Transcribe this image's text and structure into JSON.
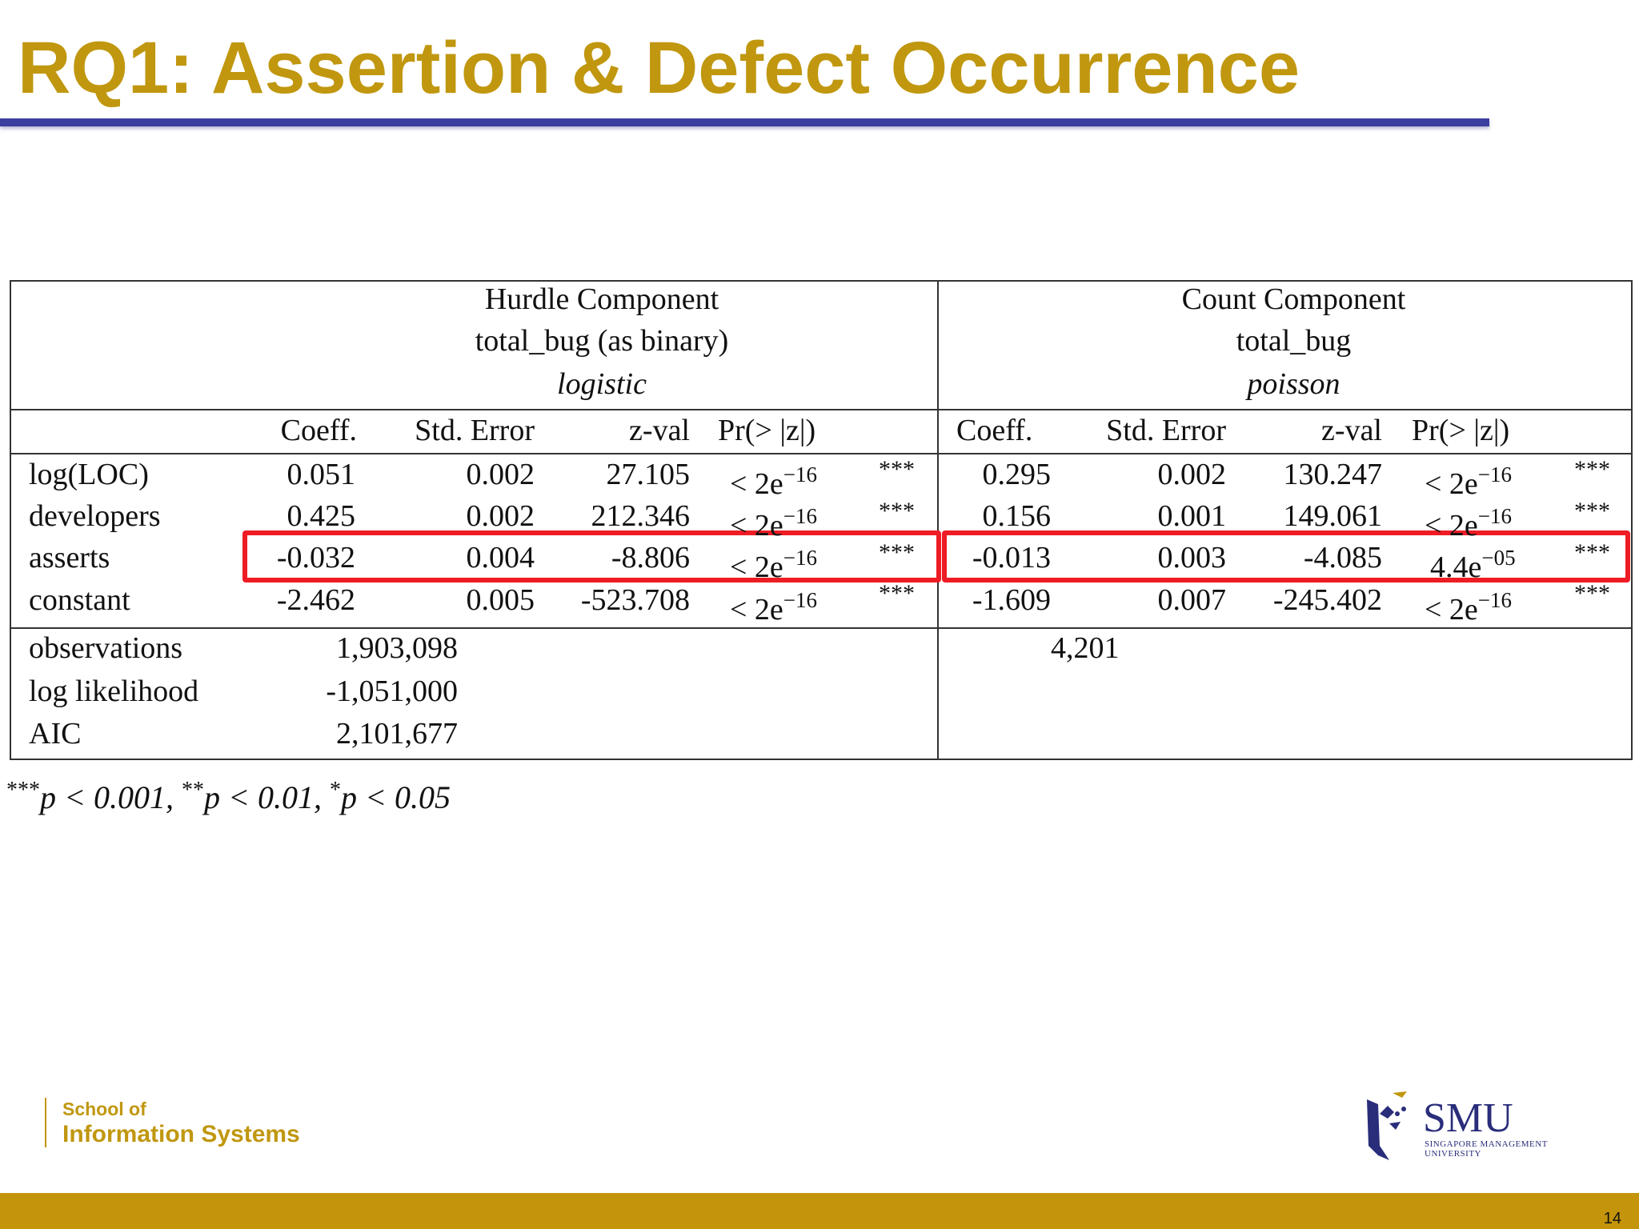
{
  "slide": {
    "title": "RQ1: Assertion & Defect Occurrence",
    "page_number": "14"
  },
  "table": {
    "hurdle": {
      "line1": "Hurdle Component",
      "line2": "total_bug (as binary)",
      "line3": "logistic"
    },
    "count": {
      "line1": "Count Component",
      "line2": "total_bug",
      "line3": "poisson"
    },
    "columns": {
      "coeff": "Coeff.",
      "std_error": "Std. Error",
      "zval": "z-val",
      "pr": "Pr(> |z|)"
    },
    "rows": [
      {
        "name": "log(LOC)",
        "hurdle": {
          "coeff": "0.051",
          "std_error": "0.002",
          "zval": "27.105",
          "pr_base": "< 2e",
          "pr_exp": "−16",
          "sig": "***"
        },
        "count": {
          "coeff": "0.295",
          "std_error": "0.002",
          "zval": "130.247",
          "pr_base": "< 2e",
          "pr_exp": "−16",
          "sig": "***"
        }
      },
      {
        "name": "developers",
        "hurdle": {
          "coeff": "0.425",
          "std_error": "0.002",
          "zval": "212.346",
          "pr_base": "< 2e",
          "pr_exp": "−16",
          "sig": "***"
        },
        "count": {
          "coeff": "0.156",
          "std_error": "0.001",
          "zval": "149.061",
          "pr_base": "< 2e",
          "pr_exp": "−16",
          "sig": "***"
        }
      },
      {
        "name": "asserts",
        "highlighted": true,
        "hurdle": {
          "coeff": "-0.032",
          "std_error": "0.004",
          "zval": "-8.806",
          "pr_base": "< 2e",
          "pr_exp": "−16",
          "sig": "***"
        },
        "count": {
          "coeff": "-0.013",
          "std_error": "0.003",
          "zval": "-4.085",
          "pr_base": "4.4e",
          "pr_exp": "−05",
          "sig": "***"
        }
      },
      {
        "name": "constant",
        "hurdle": {
          "coeff": "-2.462",
          "std_error": "0.005",
          "zval": "-523.708",
          "pr_base": "< 2e",
          "pr_exp": "−16",
          "sig": "***"
        },
        "count": {
          "coeff": "-1.609",
          "std_error": "0.007",
          "zval": "-245.402",
          "pr_base": "< 2e",
          "pr_exp": "−16",
          "sig": "***"
        }
      }
    ],
    "stats": [
      {
        "label": "observations",
        "hurdle": "1,903,098",
        "count": "4,201"
      },
      {
        "label": "log likelihood",
        "hurdle": "-1,051,000",
        "count": ""
      },
      {
        "label": "AIC",
        "hurdle": "2,101,677",
        "count": ""
      }
    ]
  },
  "footnote": {
    "s1": "***",
    "t1": "p < 0.001, ",
    "s2": "**",
    "t2": "p < 0.01, ",
    "s3": "*",
    "t3": "p < 0.05"
  },
  "branding": {
    "school_line1": "School of",
    "school_line2": "Information Systems",
    "logo_text": "SMU",
    "logo_sub_line1": "SINGAPORE MANAGEMENT",
    "logo_sub_line2": "UNIVERSITY"
  },
  "colors": {
    "title": "#c0970f",
    "rule": "#3a3fa0",
    "bar": "#c4940a",
    "highlight": "#ee1c25"
  }
}
